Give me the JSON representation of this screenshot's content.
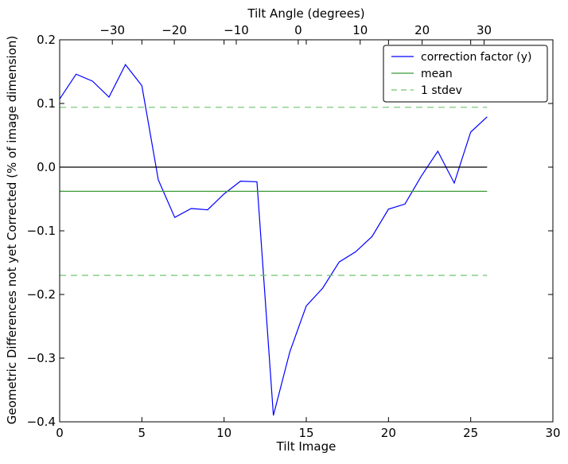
{
  "chart_data": {
    "type": "line",
    "title": "",
    "xlabel": "Tilt Image",
    "ylabel": "Geometric Differences not yet Corrected (% of image dimension)",
    "top_xlabel": "Tilt Angle (degrees)",
    "xlim": [
      0,
      30
    ],
    "ylim": [
      -0.4,
      0.2
    ],
    "top_xlim": [
      -38.5,
      41.1
    ],
    "x_ticks": [
      0,
      5,
      10,
      15,
      20,
      25,
      30
    ],
    "x_tick_labels": [
      "0",
      "5",
      "10",
      "15",
      "20",
      "25",
      "30"
    ],
    "y_ticks": [
      -0.4,
      -0.3,
      -0.2,
      -0.1,
      0.0,
      0.1,
      0.2
    ],
    "y_tick_labels": [
      "−0.4",
      "−0.3",
      "−0.2",
      "−0.1",
      "0.0",
      "0.1",
      "0.2"
    ],
    "top_ticks": [
      -30,
      -20,
      -10,
      0,
      10,
      20,
      30
    ],
    "top_tick_labels": [
      "−30",
      "−20",
      "−10",
      "0",
      "10",
      "20",
      "30"
    ],
    "grid": false,
    "legend_position": "top-right",
    "series": [
      {
        "name": "correction factor (y)",
        "color": "#0000ff",
        "style": "solid",
        "x": [
          0,
          1,
          2,
          3,
          4,
          5,
          6,
          7,
          8,
          9,
          10,
          11,
          12,
          13,
          14,
          15,
          16,
          17,
          18,
          19,
          20,
          21,
          22,
          23,
          24,
          25,
          26
        ],
        "y": [
          0.107,
          0.146,
          0.135,
          0.11,
          0.161,
          0.128,
          -0.02,
          -0.079,
          -0.065,
          -0.067,
          -0.042,
          -0.022,
          -0.023,
          -0.39,
          -0.29,
          -0.218,
          -0.19,
          -0.149,
          -0.133,
          -0.109,
          -0.066,
          -0.058,
          -0.014,
          0.025,
          -0.025,
          0.055,
          0.079
        ]
      },
      {
        "name": "mean",
        "color": "#3a9a3a",
        "style": "solid",
        "x": [
          0,
          26
        ],
        "y": [
          -0.038,
          -0.038
        ]
      },
      {
        "name": "1 stdev",
        "color": "#6cc46c",
        "style": "dashed",
        "x": [
          0,
          26
        ],
        "y": [
          0.094,
          0.094
        ]
      },
      {
        "name": "",
        "color": "#6cc46c",
        "style": "dashed",
        "x": [
          0,
          26
        ],
        "y": [
          -0.17,
          -0.17
        ]
      },
      {
        "name": "",
        "color": "#000000",
        "style": "solid",
        "x": [
          0,
          26
        ],
        "y": [
          0.0,
          0.0
        ]
      }
    ]
  }
}
